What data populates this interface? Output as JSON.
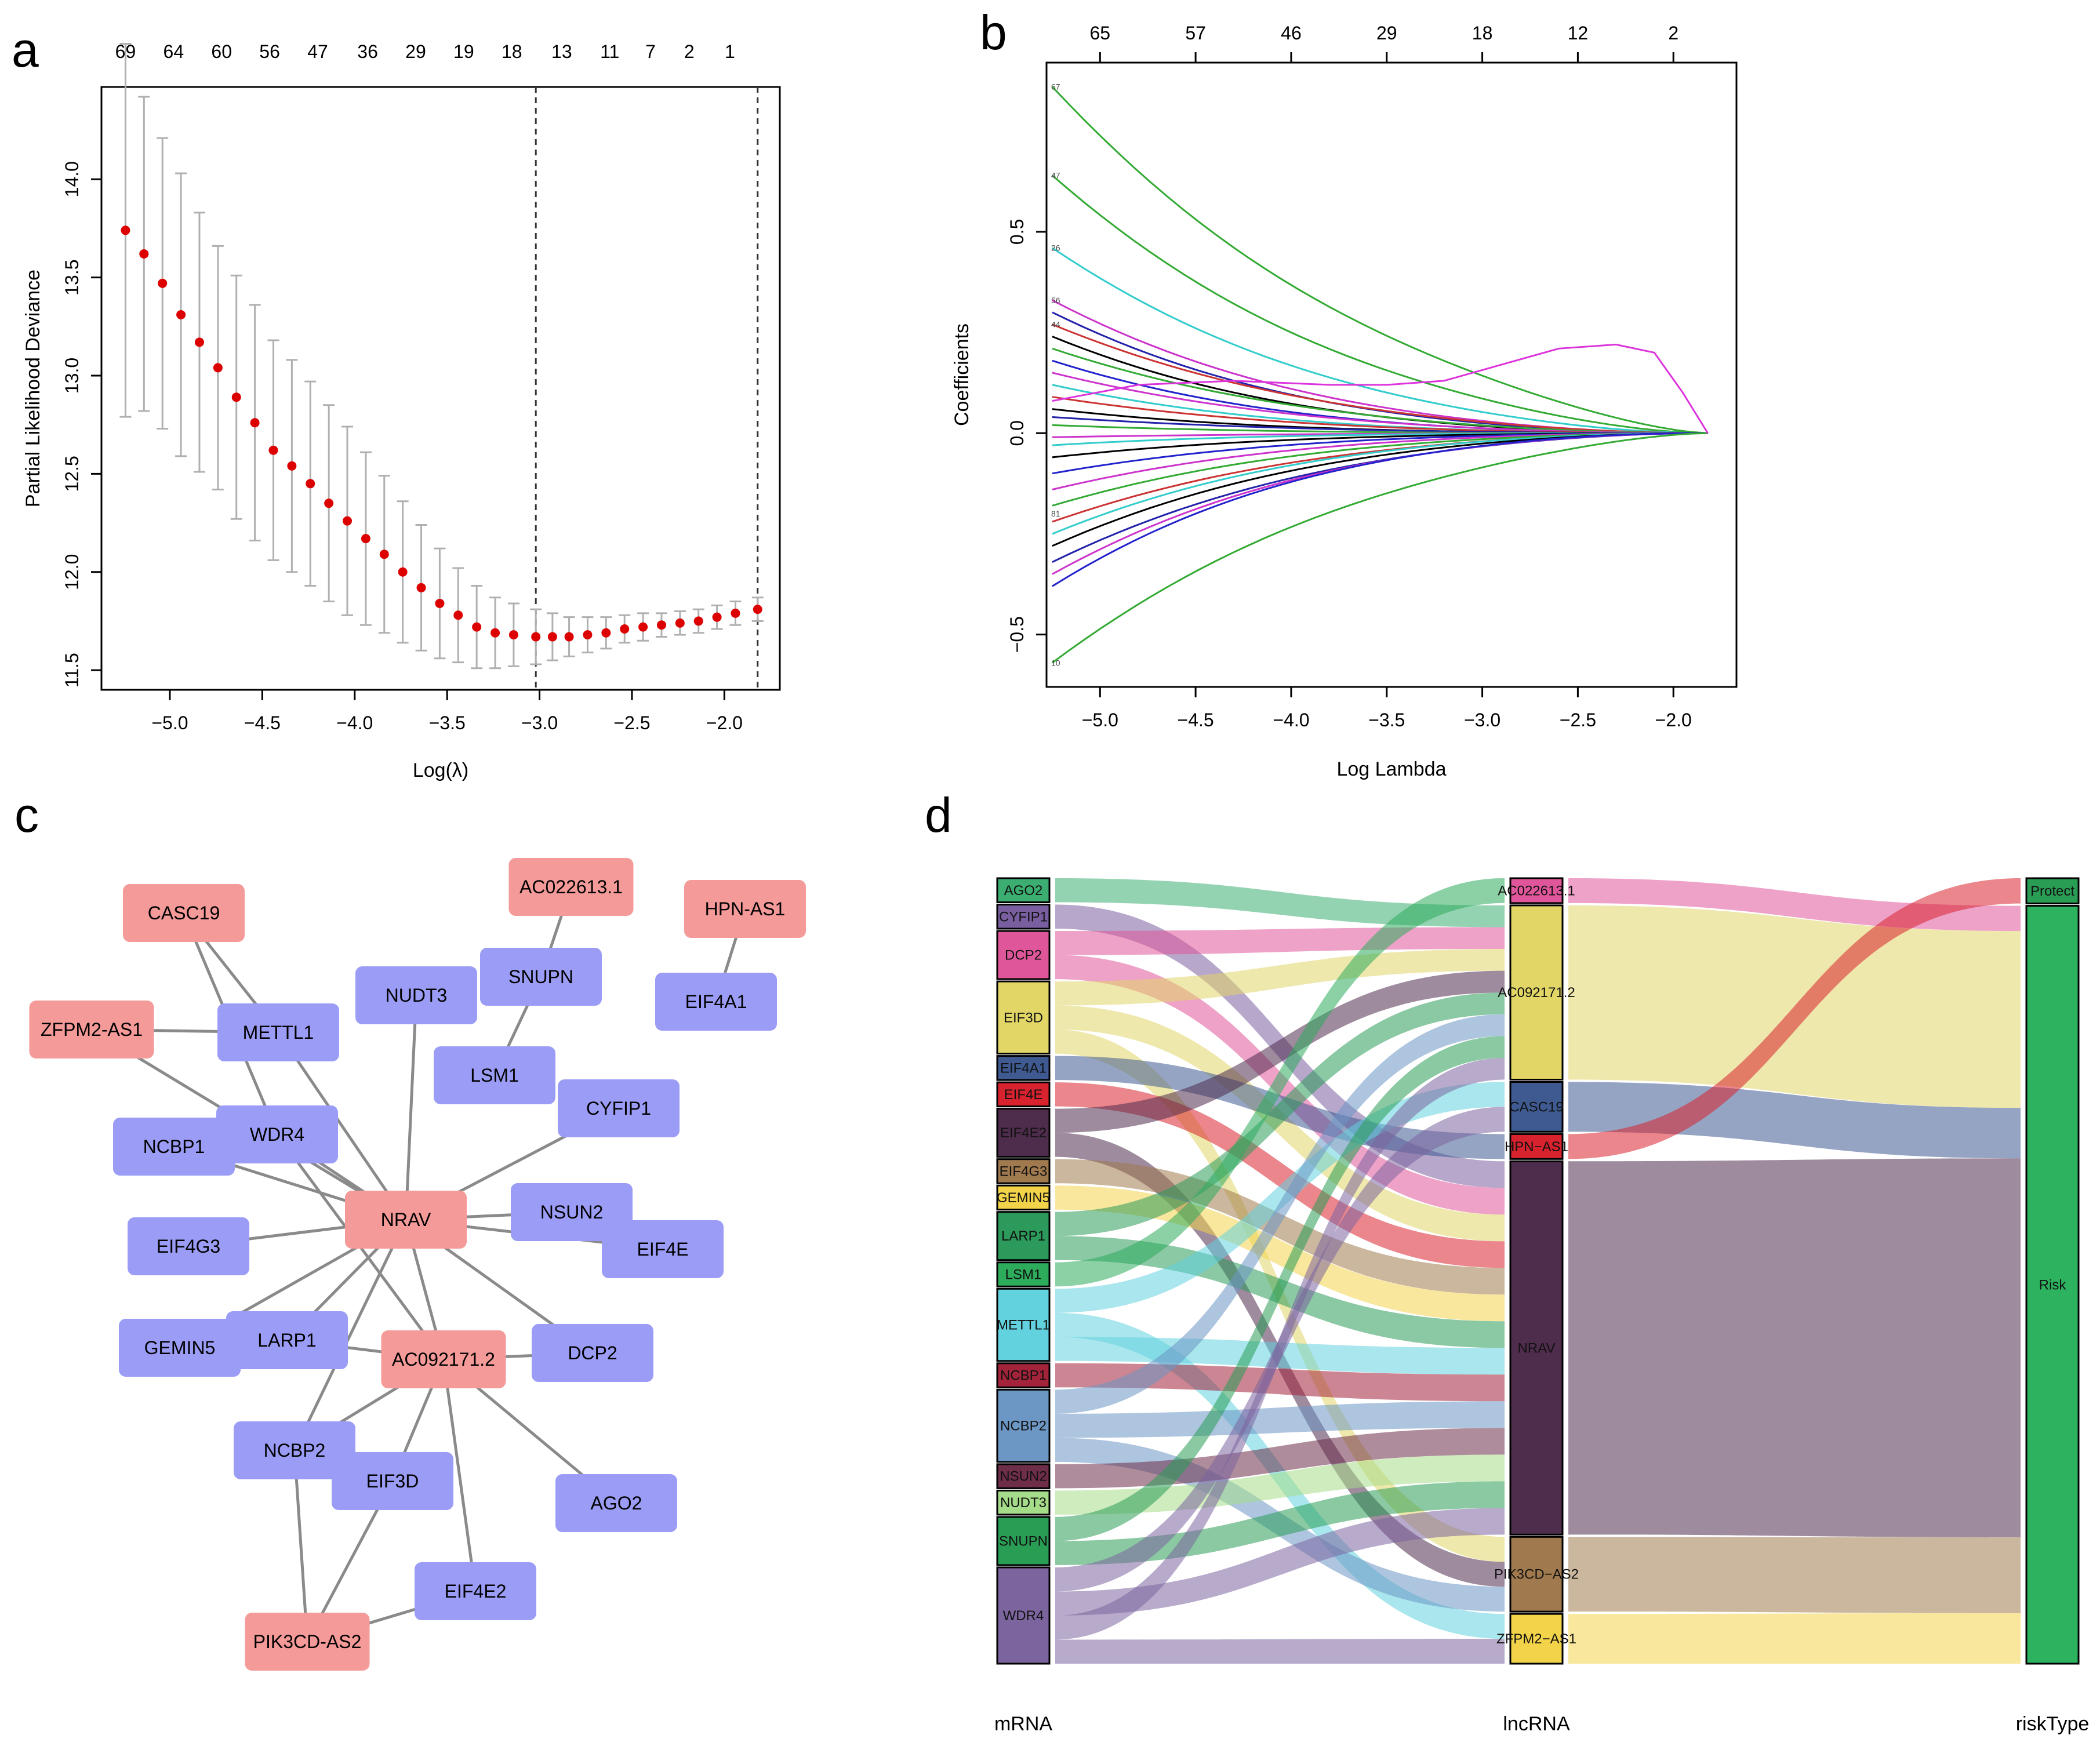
{
  "panels": {
    "a": "a",
    "b": "b",
    "c": "c",
    "d": "d"
  },
  "chart_data": [
    {
      "panel": "a",
      "type": "scatter",
      "xlabel": "Log(λ)",
      "ylabel": "Partial Likelihood Deviance",
      "xlim": [
        -5.37,
        -1.7
      ],
      "ylim": [
        11.4,
        14.47
      ],
      "xticks": [
        -5.0,
        -4.5,
        -4.0,
        -3.5,
        -3.0,
        -2.5,
        -2.0
      ],
      "xtick_labels": [
        "−5.0",
        "−4.5",
        "−4.0",
        "−3.5",
        "−3.0",
        "−2.5",
        "−2.0"
      ],
      "yticks": [
        11.5,
        12.0,
        12.5,
        13.0,
        13.5,
        14.0
      ],
      "ytick_labels": [
        "11.5",
        "12.0",
        "12.5",
        "13.0",
        "13.5",
        "14.0"
      ],
      "top_ticks": [
        -5.24,
        -4.98,
        -4.72,
        -4.46,
        -4.2,
        -3.93,
        -3.67,
        -3.41,
        -3.15,
        -2.88,
        -2.62,
        -2.4,
        -2.19,
        -1.97
      ],
      "top_tick_labels": [
        "69",
        "64",
        "60",
        "56",
        "47",
        "36",
        "29",
        "19",
        "18",
        "13",
        "11",
        "7",
        "2",
        "1"
      ],
      "vlines": [
        -3.02,
        -1.82
      ],
      "x": [
        -5.24,
        -5.14,
        -5.04,
        -4.94,
        -4.84,
        -4.74,
        -4.64,
        -4.54,
        -4.44,
        -4.34,
        -4.24,
        -4.14,
        -4.04,
        -3.94,
        -3.84,
        -3.74,
        -3.64,
        -3.54,
        -3.44,
        -3.34,
        -3.24,
        -3.14,
        -3.02,
        -2.93,
        -2.84,
        -2.74,
        -2.64,
        -2.54,
        -2.44,
        -2.34,
        -2.24,
        -2.14,
        -2.04,
        -1.94,
        -1.82
      ],
      "y": [
        13.74,
        13.62,
        13.47,
        13.31,
        13.17,
        13.04,
        12.89,
        12.76,
        12.62,
        12.54,
        12.45,
        12.35,
        12.26,
        12.17,
        12.09,
        12.0,
        11.92,
        11.84,
        11.78,
        11.72,
        11.69,
        11.68,
        11.67,
        11.67,
        11.67,
        11.68,
        11.69,
        11.71,
        11.72,
        11.73,
        11.74,
        11.75,
        11.77,
        11.79,
        11.81
      ],
      "err": [
        0.95,
        0.8,
        0.74,
        0.72,
        0.66,
        0.62,
        0.62,
        0.6,
        0.56,
        0.54,
        0.52,
        0.5,
        0.48,
        0.44,
        0.4,
        0.36,
        0.32,
        0.28,
        0.24,
        0.21,
        0.18,
        0.16,
        0.14,
        0.12,
        0.1,
        0.09,
        0.08,
        0.07,
        0.07,
        0.06,
        0.06,
        0.06,
        0.06,
        0.06,
        0.06
      ],
      "point_color": "#dd0000",
      "bar_color": "#b0b0b0"
    },
    {
      "panel": "b",
      "type": "line",
      "xlabel": "Log Lambda",
      "ylabel": "Coefficients",
      "xlim": [
        -5.28,
        -1.67
      ],
      "ylim": [
        -0.63,
        0.92
      ],
      "xticks": [
        -5.0,
        -4.5,
        -4.0,
        -3.5,
        -3.0,
        -2.5,
        -2.0
      ],
      "xtick_labels": [
        "−5.0",
        "−4.5",
        "−4.0",
        "−3.5",
        "−3.0",
        "−2.5",
        "−2.0"
      ],
      "yticks": [
        -0.5,
        0.0,
        0.5
      ],
      "ytick_labels": [
        "−0.5",
        "0.0",
        "0.5"
      ],
      "top_ticks": [
        -5.0,
        -4.5,
        -4.0,
        -3.5,
        -3.0,
        -2.5,
        -2.0
      ],
      "top_tick_labels": [
        "65",
        "57",
        "46",
        "29",
        "18",
        "12",
        "2"
      ],
      "left_labels": [
        "67",
        "47",
        "26",
        "56",
        "44",
        "81",
        "10"
      ],
      "end_x": -1.82,
      "series": [
        {
          "start": 0.86,
          "k": 0.35,
          "color": "#33aa33"
        },
        {
          "start": 0.64,
          "k": 0.55,
          "color": "#33aa33"
        },
        {
          "start": 0.46,
          "k": 0.7,
          "color": "#33cccc"
        },
        {
          "start": 0.33,
          "k": 0.9,
          "color": "#cc33cc"
        },
        {
          "start": 0.3,
          "k": 1.0,
          "color": "#2222aa"
        },
        {
          "start": 0.27,
          "k": 0.8,
          "color": "#cc3333"
        },
        {
          "start": 0.24,
          "k": 1.1,
          "color": "#000000"
        },
        {
          "start": 0.21,
          "k": 0.9,
          "color": "#33aa33"
        },
        {
          "start": 0.18,
          "k": 1.2,
          "color": "#2222cc"
        },
        {
          "start": 0.15,
          "k": 1.0,
          "color": "#cc33cc"
        },
        {
          "start": 0.12,
          "k": 1.3,
          "color": "#33cccc"
        },
        {
          "start": 0.09,
          "k": 1.1,
          "color": "#cc3333"
        },
        {
          "start": 0.06,
          "k": 1.4,
          "color": "#000000"
        },
        {
          "start": 0.04,
          "k": 1.0,
          "color": "#2222aa"
        },
        {
          "start": 0.02,
          "k": 1.5,
          "color": "#33aa33"
        },
        {
          "start": -0.01,
          "k": 1.2,
          "color": "#cc33cc"
        },
        {
          "start": -0.03,
          "k": 1.6,
          "color": "#33cccc"
        },
        {
          "start": -0.06,
          "k": 1.3,
          "color": "#000000"
        },
        {
          "start": -0.1,
          "k": 1.2,
          "color": "#2222cc"
        },
        {
          "start": -0.14,
          "k": 1.1,
          "color": "#cc33cc"
        },
        {
          "start": -0.18,
          "k": 1.0,
          "color": "#33aa33"
        },
        {
          "start": -0.22,
          "k": 0.9,
          "color": "#cc3333"
        },
        {
          "start": -0.25,
          "k": 1.0,
          "color": "#33cccc"
        },
        {
          "start": -0.28,
          "k": 0.9,
          "color": "#000000"
        },
        {
          "start": -0.32,
          "k": 0.8,
          "color": "#2222aa"
        },
        {
          "start": -0.35,
          "k": 0.9,
          "color": "#cc33cc"
        },
        {
          "start": -0.38,
          "k": 1.0,
          "color": "#2222cc"
        },
        {
          "start": -0.57,
          "k": 0.45,
          "color": "#33aa33"
        }
      ],
      "special_series": {
        "color": "#dd33dd",
        "x": [
          -5.25,
          -4.8,
          -4.3,
          -3.8,
          -3.5,
          -3.2,
          -2.9,
          -2.6,
          -2.3,
          -2.1,
          -1.95,
          -1.82
        ],
        "y": [
          0.08,
          0.12,
          0.13,
          0.12,
          0.12,
          0.13,
          0.17,
          0.21,
          0.22,
          0.2,
          0.1,
          0.0
        ]
      }
    },
    {
      "panel": "c",
      "type": "table",
      "lnc_color": "#f49a98",
      "mrna_color": "#9a9cf5",
      "nodes": [
        {
          "id": "CASC19",
          "kind": "lnc"
        },
        {
          "id": "AC022613.1",
          "kind": "lnc"
        },
        {
          "id": "HPN-AS1",
          "kind": "lnc"
        },
        {
          "id": "ZFPM2-AS1",
          "kind": "lnc"
        },
        {
          "id": "NRAV",
          "kind": "lnc"
        },
        {
          "id": "AC092171.2",
          "kind": "lnc"
        },
        {
          "id": "PIK3CD-AS2",
          "kind": "lnc"
        },
        {
          "id": "METTL1",
          "kind": "mrna"
        },
        {
          "id": "NUDT3",
          "kind": "mrna"
        },
        {
          "id": "SNUPN",
          "kind": "mrna"
        },
        {
          "id": "EIF4A1",
          "kind": "mrna"
        },
        {
          "id": "LSM1",
          "kind": "mrna"
        },
        {
          "id": "CYFIP1",
          "kind": "mrna"
        },
        {
          "id": "WDR4",
          "kind": "mrna"
        },
        {
          "id": "NCBP1",
          "kind": "mrna"
        },
        {
          "id": "NSUN2",
          "kind": "mrna"
        },
        {
          "id": "EIF4E",
          "kind": "mrna"
        },
        {
          "id": "EIF4G3",
          "kind": "mrna"
        },
        {
          "id": "GEMIN5",
          "kind": "mrna"
        },
        {
          "id": "LARP1",
          "kind": "mrna"
        },
        {
          "id": "DCP2",
          "kind": "mrna"
        },
        {
          "id": "NCBP2",
          "kind": "mrna"
        },
        {
          "id": "EIF3D",
          "kind": "mrna"
        },
        {
          "id": "AGO2",
          "kind": "mrna"
        },
        {
          "id": "EIF4E2",
          "kind": "mrna"
        }
      ],
      "edges": [
        [
          "CASC19",
          "METTL1"
        ],
        [
          "CASC19",
          "WDR4"
        ],
        [
          "ZFPM2-AS1",
          "METTL1"
        ],
        [
          "ZFPM2-AS1",
          "NRAV"
        ],
        [
          "HPN-AS1",
          "EIF4A1"
        ],
        [
          "AC022613.1",
          "SNUPN"
        ],
        [
          "SNUPN",
          "LSM1"
        ],
        [
          "NRAV",
          "METTL1"
        ],
        [
          "NRAV",
          "NUDT3"
        ],
        [
          "NRAV",
          "WDR4"
        ],
        [
          "NRAV",
          "NCBP1"
        ],
        [
          "NRAV",
          "CYFIP1"
        ],
        [
          "NRAV",
          "NSUN2"
        ],
        [
          "NRAV",
          "EIF4E"
        ],
        [
          "NRAV",
          "EIF4G3"
        ],
        [
          "NRAV",
          "LARP1"
        ],
        [
          "NRAV",
          "NCBP2"
        ],
        [
          "NRAV",
          "DCP2"
        ],
        [
          "NRAV",
          "AC092171.2"
        ],
        [
          "AC092171.2",
          "WDR4"
        ],
        [
          "AC092171.2",
          "LARP1"
        ],
        [
          "AC092171.2",
          "DCP2"
        ],
        [
          "AC092171.2",
          "NCBP2"
        ],
        [
          "AC092171.2",
          "EIF3D"
        ],
        [
          "AC092171.2",
          "AGO2"
        ],
        [
          "AC092171.2",
          "EIF4E2"
        ],
        [
          "PIK3CD-AS2",
          "EIF4E2"
        ],
        [
          "PIK3CD-AS2",
          "EIF3D"
        ],
        [
          "PIK3CD-AS2",
          "NCBP2"
        ],
        [
          "GEMIN5",
          "NRAV"
        ]
      ]
    },
    {
      "panel": "d",
      "type": "table",
      "axis_labels": {
        "left": "mRNA",
        "middle": "lncRNA",
        "right": "riskType"
      },
      "mrna": [
        {
          "name": "AGO2",
          "w": 1,
          "color": "#3cae72"
        },
        {
          "name": "CYFIP1",
          "w": 1,
          "color": "#7a5fa0"
        },
        {
          "name": "DCP2",
          "w": 2,
          "color": "#e0569a"
        },
        {
          "name": "EIF3D",
          "w": 3,
          "color": "#e2d667"
        },
        {
          "name": "EIF4A1",
          "w": 1,
          "color": "#3e5a91"
        },
        {
          "name": "EIF4E",
          "w": 1,
          "color": "#d8232e"
        },
        {
          "name": "EIF4E2",
          "w": 2,
          "color": "#4e2c4c"
        },
        {
          "name": "EIF4G3",
          "w": 1,
          "color": "#a07a4e"
        },
        {
          "name": "GEMIN5",
          "w": 1,
          "color": "#f3d34a"
        },
        {
          "name": "LARP1",
          "w": 2,
          "color": "#2c9a5a"
        },
        {
          "name": "LSM1",
          "w": 1,
          "color": "#2dac5c"
        },
        {
          "name": "METTL1",
          "w": 3,
          "color": "#62d2de"
        },
        {
          "name": "NCBP1",
          "w": 1,
          "color": "#a3233a"
        },
        {
          "name": "NCBP2",
          "w": 3,
          "color": "#6c96c4"
        },
        {
          "name": "NSUN2",
          "w": 1,
          "color": "#6e2d48"
        },
        {
          "name": "NUDT3",
          "w": 1,
          "color": "#a5dc89"
        },
        {
          "name": "SNUPN",
          "w": 2,
          "color": "#2a9d55"
        },
        {
          "name": "WDR4",
          "w": 4,
          "color": "#7c659e"
        }
      ],
      "lnc": [
        {
          "name": "AC022613.1",
          "w": 1,
          "color": "#e0569a"
        },
        {
          "name": "AC092171.2",
          "w": 7,
          "color": "#e2d667"
        },
        {
          "name": "CASC19",
          "w": 2,
          "color": "#3e5a91"
        },
        {
          "name": "HPN−AS1",
          "w": 1,
          "color": "#d8232e"
        },
        {
          "name": "NRAV",
          "w": 15,
          "color": "#4e2c4c"
        },
        {
          "name": "PIK3CD−AS2",
          "w": 3,
          "color": "#a07a4e"
        },
        {
          "name": "ZFPM2−AS1",
          "w": 2,
          "color": "#f3d34a"
        }
      ],
      "risk": [
        {
          "name": "Protect",
          "w": 1,
          "color": "#2a9d55"
        },
        {
          "name": "Risk",
          "w": 30,
          "color": "#2db35f"
        }
      ],
      "flows1": [
        [
          "AGO2",
          "AC092171.2",
          1
        ],
        [
          "CYFIP1",
          "NRAV",
          1
        ],
        [
          "DCP2",
          "AC092171.2",
          1
        ],
        [
          "DCP2",
          "NRAV",
          1
        ],
        [
          "EIF3D",
          "AC092171.2",
          1
        ],
        [
          "EIF3D",
          "NRAV",
          1
        ],
        [
          "EIF3D",
          "PIK3CD−AS2",
          1
        ],
        [
          "EIF4A1",
          "HPN−AS1",
          1
        ],
        [
          "EIF4E",
          "NRAV",
          1
        ],
        [
          "EIF4E2",
          "AC092171.2",
          1
        ],
        [
          "EIF4E2",
          "PIK3CD−AS2",
          1
        ],
        [
          "EIF4G3",
          "NRAV",
          1
        ],
        [
          "GEMIN5",
          "NRAV",
          1
        ],
        [
          "LARP1",
          "AC092171.2",
          1
        ],
        [
          "LARP1",
          "NRAV",
          1
        ],
        [
          "LSM1",
          "AC022613.1",
          1
        ],
        [
          "METTL1",
          "CASC19",
          1
        ],
        [
          "METTL1",
          "ZFPM2−AS1",
          1
        ],
        [
          "METTL1",
          "NRAV",
          1
        ],
        [
          "NCBP1",
          "NRAV",
          1
        ],
        [
          "NCBP2",
          "AC092171.2",
          1
        ],
        [
          "NCBP2",
          "NRAV",
          1
        ],
        [
          "NCBP2",
          "PIK3CD−AS2",
          1
        ],
        [
          "NSUN2",
          "NRAV",
          1
        ],
        [
          "NUDT3",
          "NRAV",
          1
        ],
        [
          "SNUPN",
          "AC092171.2",
          1
        ],
        [
          "SNUPN",
          "NRAV",
          1
        ],
        [
          "WDR4",
          "CASC19",
          1
        ],
        [
          "WDR4",
          "NRAV",
          1
        ],
        [
          "WDR4",
          "AC092171.2",
          1
        ],
        [
          "WDR4",
          "ZFPM2−AS1",
          1
        ]
      ],
      "flows2": [
        [
          "AC022613.1",
          "Risk",
          1
        ],
        [
          "AC092171.2",
          "Risk",
          7
        ],
        [
          "CASC19",
          "Risk",
          2
        ],
        [
          "HPN−AS1",
          "Protect",
          1
        ],
        [
          "NRAV",
          "Risk",
          15
        ],
        [
          "PIK3CD−AS2",
          "Risk",
          3
        ],
        [
          "ZFPM2−AS1",
          "Risk",
          2
        ]
      ]
    }
  ]
}
